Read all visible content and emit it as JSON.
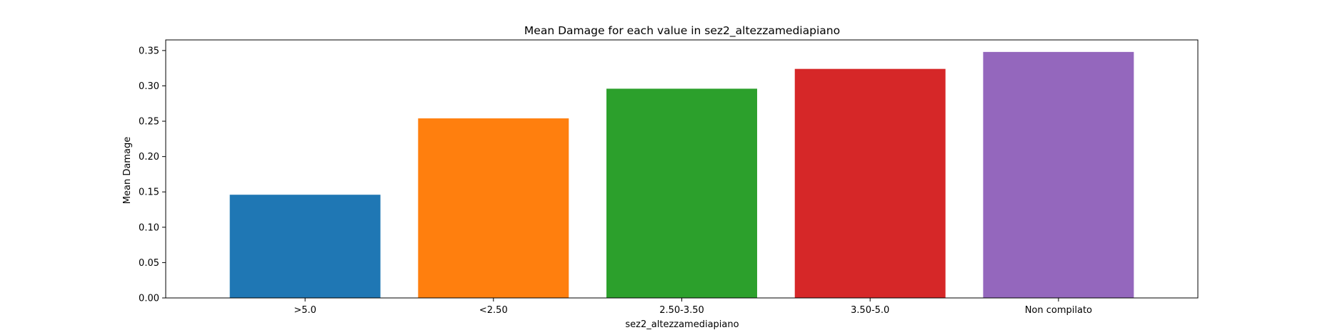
{
  "chart_data": {
    "type": "bar",
    "title": "Mean Damage for each value in sez2_altezzamediapiano",
    "xlabel": "sez2_altezzamediapiano",
    "ylabel": "Mean Damage",
    "categories": [
      ">5.0",
      "<2.50",
      "2.50-3.50",
      "3.50-5.0",
      "Non compilato"
    ],
    "values": [
      0.146,
      0.254,
      0.296,
      0.324,
      0.348
    ],
    "colors": [
      "#1f77b4",
      "#ff7f0e",
      "#2ca02c",
      "#d62728",
      "#9467bd"
    ],
    "ylim": [
      0,
      0.365
    ],
    "yticks": [
      0.0,
      0.05,
      0.1,
      0.15,
      0.2,
      0.25,
      0.3,
      0.35
    ],
    "ytick_labels": [
      "0.00",
      "0.05",
      "0.10",
      "0.15",
      "0.20",
      "0.25",
      "0.30",
      "0.35"
    ],
    "grid": false,
    "legend": "none"
  }
}
